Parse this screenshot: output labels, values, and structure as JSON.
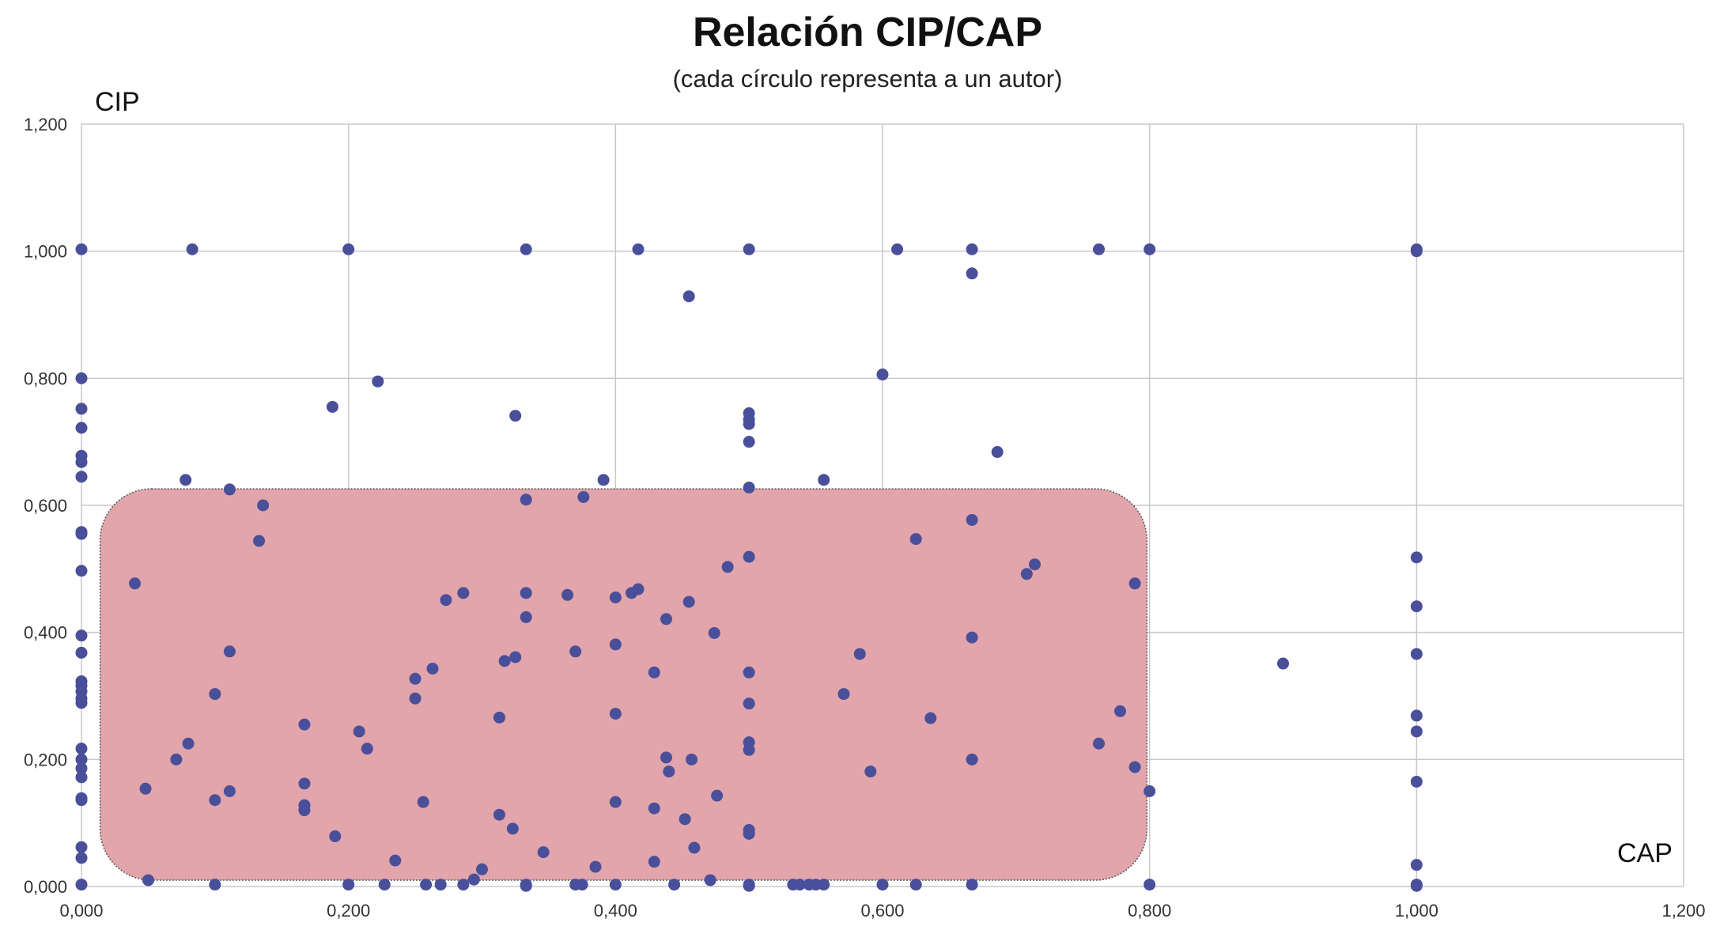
{
  "chart_data": {
    "type": "scatter",
    "title": "Relación CIP/CAP",
    "subtitle": "(cada círculo representa a un autor)",
    "xlabel": "CAP",
    "ylabel": "CIP",
    "xlim": [
      0,
      1.2
    ],
    "ylim": [
      0,
      1.2
    ],
    "x_ticks": [
      0,
      0.2,
      0.4,
      0.6,
      0.8,
      1.0,
      1.2
    ],
    "x_tick_labels": [
      "0,000",
      "0,200",
      "0,400",
      "0,600",
      "0,800",
      "1,000",
      "1,200"
    ],
    "y_ticks": [
      0,
      0.2,
      0.4,
      0.6,
      0.8,
      1.0,
      1.2
    ],
    "y_tick_labels": [
      "0,000",
      "0,200",
      "0,400",
      "0,600",
      "0,800",
      "1,000",
      "1,200"
    ],
    "grid": true,
    "legend": "none",
    "highlight_region": {
      "x_range": [
        0.014,
        0.798
      ],
      "y_range": [
        0.01,
        0.626
      ],
      "color": "#e1a5ab"
    },
    "colors": {
      "points": "#4a4f9a",
      "grid": "#c8c8c8",
      "highlight": "#e1a5ab",
      "highlight_border": "#555555"
    },
    "points": [
      [
        0.0,
        1.003
      ],
      [
        0.0,
        0.8
      ],
      [
        0.0,
        0.752
      ],
      [
        0.0,
        0.722
      ],
      [
        0.0,
        0.678
      ],
      [
        0.0,
        0.668
      ],
      [
        0.0,
        0.645
      ],
      [
        0.0,
        0.558
      ],
      [
        0.0,
        0.555
      ],
      [
        0.0,
        0.497
      ],
      [
        0.0,
        0.395
      ],
      [
        0.0,
        0.368
      ],
      [
        0.0,
        0.323
      ],
      [
        0.0,
        0.316
      ],
      [
        0.0,
        0.307
      ],
      [
        0.0,
        0.296
      ],
      [
        0.0,
        0.289
      ],
      [
        0.0,
        0.217
      ],
      [
        0.0,
        0.2
      ],
      [
        0.0,
        0.186
      ],
      [
        0.0,
        0.172
      ],
      [
        0.0,
        0.139
      ],
      [
        0.0,
        0.136
      ],
      [
        0.0,
        0.062
      ],
      [
        0.0,
        0.045
      ],
      [
        0.0,
        0.003
      ],
      [
        0.083,
        1.003
      ],
      [
        0.2,
        1.003
      ],
      [
        0.333,
        1.003
      ],
      [
        0.417,
        1.003
      ],
      [
        0.5,
        1.003
      ],
      [
        0.611,
        1.003
      ],
      [
        0.667,
        1.003
      ],
      [
        0.762,
        1.003
      ],
      [
        0.8,
        1.003
      ],
      [
        1.0,
        1.003
      ],
      [
        1.0,
        1.0
      ],
      [
        0.667,
        0.965
      ],
      [
        0.455,
        0.929
      ],
      [
        0.222,
        0.795
      ],
      [
        0.6,
        0.806
      ],
      [
        0.188,
        0.755
      ],
      [
        0.325,
        0.741
      ],
      [
        0.5,
        0.745
      ],
      [
        0.5,
        0.735
      ],
      [
        0.5,
        0.728
      ],
      [
        0.5,
        0.7
      ],
      [
        0.686,
        0.684
      ],
      [
        0.078,
        0.64
      ],
      [
        0.111,
        0.625
      ],
      [
        0.391,
        0.64
      ],
      [
        0.556,
        0.64
      ],
      [
        0.5,
        0.628
      ],
      [
        0.136,
        0.6
      ],
      [
        0.333,
        0.609
      ],
      [
        0.376,
        0.613
      ],
      [
        0.667,
        0.577
      ],
      [
        0.625,
        0.547
      ],
      [
        0.133,
        0.544
      ],
      [
        0.5,
        0.519
      ],
      [
        1.0,
        0.518
      ],
      [
        0.484,
        0.503
      ],
      [
        0.714,
        0.507
      ],
      [
        0.708,
        0.492
      ],
      [
        0.04,
        0.477
      ],
      [
        0.789,
        0.477
      ],
      [
        0.286,
        0.462
      ],
      [
        0.333,
        0.462
      ],
      [
        0.364,
        0.459
      ],
      [
        0.417,
        0.468
      ],
      [
        0.412,
        0.462
      ],
      [
        0.4,
        0.455
      ],
      [
        0.273,
        0.451
      ],
      [
        0.455,
        0.448
      ],
      [
        1.0,
        0.441
      ],
      [
        0.333,
        0.424
      ],
      [
        0.438,
        0.421
      ],
      [
        0.474,
        0.399
      ],
      [
        0.667,
        0.392
      ],
      [
        0.4,
        0.381
      ],
      [
        0.111,
        0.37
      ],
      [
        0.37,
        0.37
      ],
      [
        0.583,
        0.366
      ],
      [
        1.0,
        0.366
      ],
      [
        0.325,
        0.361
      ],
      [
        0.317,
        0.355
      ],
      [
        0.9,
        0.351
      ],
      [
        0.263,
        0.343
      ],
      [
        0.429,
        0.337
      ],
      [
        0.5,
        0.337
      ],
      [
        0.25,
        0.327
      ],
      [
        0.1,
        0.303
      ],
      [
        0.571,
        0.303
      ],
      [
        0.25,
        0.296
      ],
      [
        0.5,
        0.288
      ],
      [
        0.778,
        0.276
      ],
      [
        0.4,
        0.272
      ],
      [
        1.0,
        0.269
      ],
      [
        0.313,
        0.266
      ],
      [
        0.636,
        0.265
      ],
      [
        0.167,
        0.255
      ],
      [
        0.208,
        0.244
      ],
      [
        1.0,
        0.244
      ],
      [
        0.5,
        0.227
      ],
      [
        0.08,
        0.225
      ],
      [
        0.762,
        0.225
      ],
      [
        0.214,
        0.217
      ],
      [
        0.5,
        0.215
      ],
      [
        0.071,
        0.2
      ],
      [
        0.438,
        0.203
      ],
      [
        0.457,
        0.2
      ],
      [
        0.667,
        0.2
      ],
      [
        0.789,
        0.188
      ],
      [
        0.44,
        0.181
      ],
      [
        0.591,
        0.181
      ],
      [
        1.0,
        0.165
      ],
      [
        0.167,
        0.162
      ],
      [
        0.048,
        0.154
      ],
      [
        0.111,
        0.15
      ],
      [
        0.8,
        0.15
      ],
      [
        0.476,
        0.143
      ],
      [
        0.1,
        0.136
      ],
      [
        0.256,
        0.133
      ],
      [
        0.4,
        0.133
      ],
      [
        0.167,
        0.128
      ],
      [
        0.167,
        0.12
      ],
      [
        0.429,
        0.123
      ],
      [
        0.313,
        0.113
      ],
      [
        0.452,
        0.106
      ],
      [
        0.323,
        0.091
      ],
      [
        0.5,
        0.089
      ],
      [
        0.5,
        0.083
      ],
      [
        0.19,
        0.079
      ],
      [
        0.459,
        0.061
      ],
      [
        0.346,
        0.054
      ],
      [
        0.235,
        0.041
      ],
      [
        0.429,
        0.039
      ],
      [
        1.0,
        0.034
      ],
      [
        0.385,
        0.031
      ],
      [
        0.3,
        0.027
      ],
      [
        0.294,
        0.011
      ],
      [
        0.471,
        0.01
      ],
      [
        0.05,
        0.01
      ],
      [
        0.1,
        0.003
      ],
      [
        0.2,
        0.003
      ],
      [
        0.227,
        0.003
      ],
      [
        0.258,
        0.003
      ],
      [
        0.269,
        0.003
      ],
      [
        0.286,
        0.003
      ],
      [
        0.333,
        0.003
      ],
      [
        0.333,
        0.001
      ],
      [
        0.375,
        0.003
      ],
      [
        0.37,
        0.003
      ],
      [
        0.4,
        0.003
      ],
      [
        0.444,
        0.003
      ],
      [
        0.5,
        0.003
      ],
      [
        0.5,
        0.001
      ],
      [
        0.533,
        0.003
      ],
      [
        0.538,
        0.003
      ],
      [
        0.545,
        0.003
      ],
      [
        0.55,
        0.003
      ],
      [
        0.556,
        0.003
      ],
      [
        0.6,
        0.003
      ],
      [
        0.625,
        0.003
      ],
      [
        0.667,
        0.003
      ],
      [
        0.8,
        0.003
      ],
      [
        1.0,
        0.003
      ],
      [
        1.0,
        0.001
      ]
    ]
  }
}
